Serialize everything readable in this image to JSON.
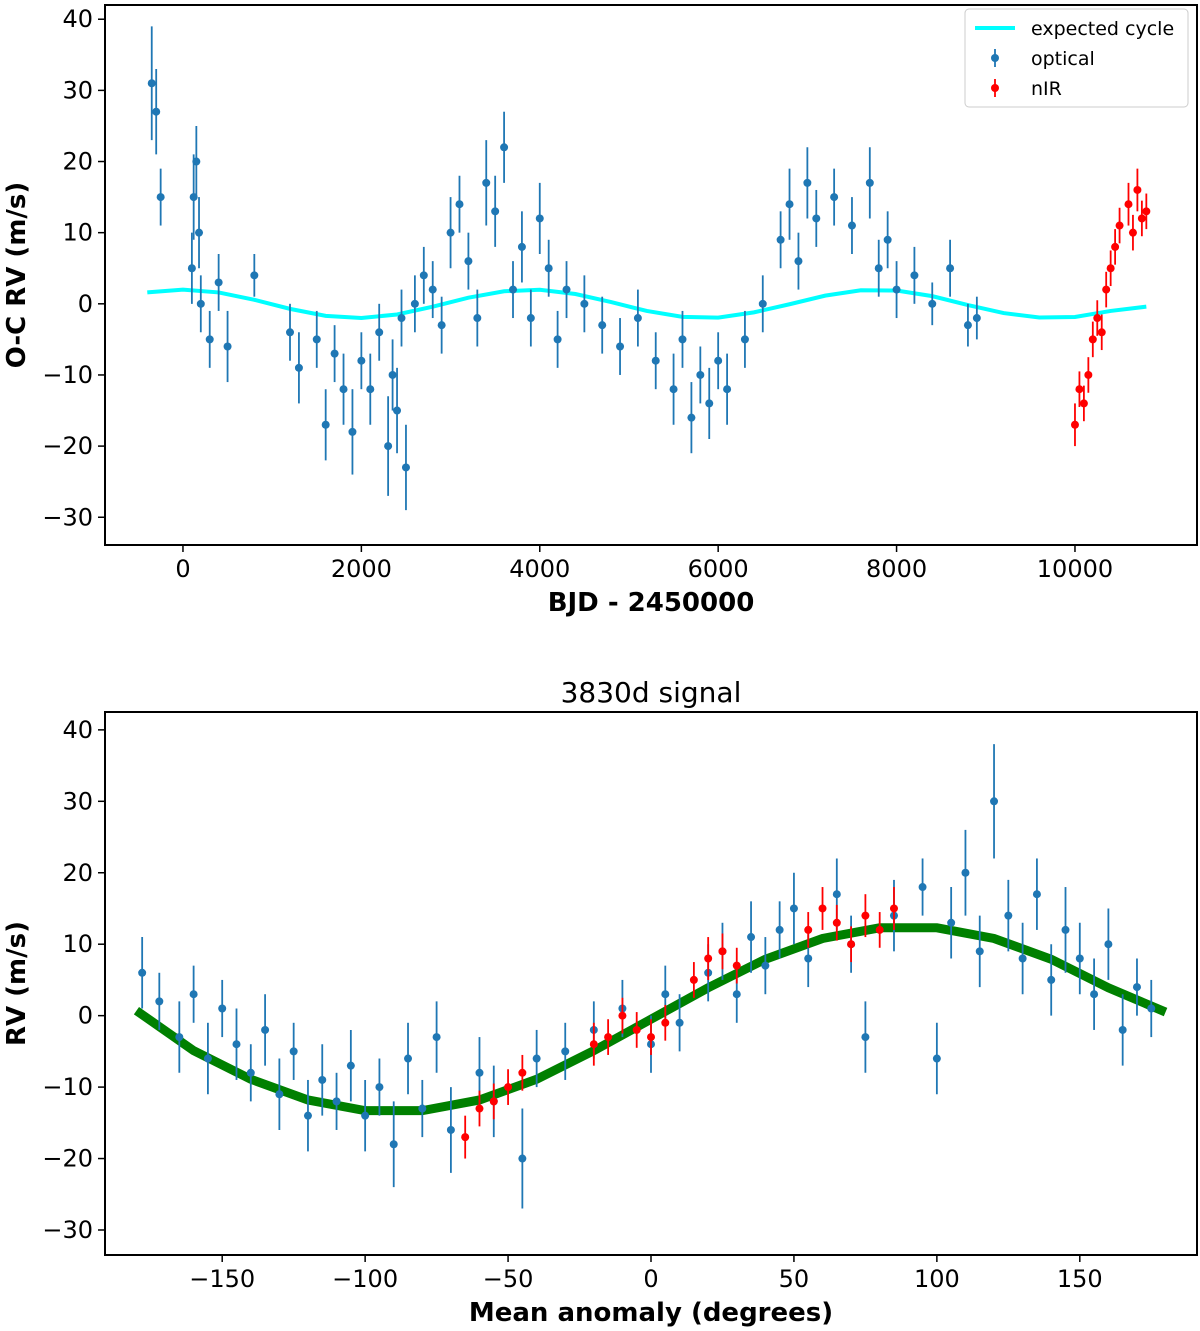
{
  "chart_data": [
    {
      "type": "scatter",
      "x_label": "BJD - 2450000",
      "y_label": "O-C RV (m/s)",
      "xlim": [
        -874,
        11368
      ],
      "ylim": [
        -33.9,
        42
      ],
      "xticks": [
        0,
        2000,
        4000,
        6000,
        8000,
        10000
      ],
      "yticks": [
        {
          "value": -30,
          "label": "−30"
        },
        {
          "value": -20,
          "label": "−20"
        },
        {
          "value": -10,
          "label": "−10"
        },
        0,
        10,
        20,
        30,
        40
      ],
      "legend": "upper right",
      "series": [
        {
          "name": "expected cycle",
          "type": "line",
          "color": "#00ffff",
          "x": [
            -400,
            0,
            400,
            800,
            1200,
            1600,
            2000,
            2400,
            2800,
            3200,
            3600,
            4000,
            4400,
            4800,
            5200,
            5600,
            6000,
            6400,
            6800,
            7200,
            7600,
            8000,
            8400,
            8800,
            9200,
            9600,
            10000,
            10400,
            10800
          ],
          "values": [
            1.6,
            2,
            1.6,
            0.56,
            -0.71,
            -1.69,
            -1.99,
            -1.5,
            -0.4,
            0.86,
            1.77,
            1.97,
            1.38,
            0.24,
            -1.0,
            -1.84,
            -1.94,
            -1.2,
            -0.06,
            1.15,
            1.9,
            1.87,
            1.08,
            -0.17,
            -1.3,
            -1.93,
            -1.85,
            -1.0,
            -0.4
          ]
        },
        {
          "name": "optical",
          "type": "errorbar",
          "color": "#1f77b4",
          "x": [
            -350,
            -300,
            -250,
            100,
            120,
            150,
            180,
            200,
            300,
            400,
            500,
            800,
            1200,
            1300,
            1500,
            1600,
            1700,
            1800,
            1900,
            2000,
            2100,
            2200,
            2300,
            2350,
            2400,
            2450,
            2500,
            2600,
            2700,
            2800,
            2900,
            3000,
            3100,
            3200,
            3300,
            3400,
            3500,
            3600,
            3700,
            3800,
            3900,
            4000,
            4100,
            4200,
            4300,
            4500,
            4700,
            4900,
            5100,
            5300,
            5500,
            5600,
            5700,
            5800,
            5900,
            6000,
            6100,
            6300,
            6500,
            6700,
            6800,
            6900,
            7000,
            7100,
            7300,
            7500,
            7700,
            7800,
            7900,
            8000,
            8200,
            8400,
            8600,
            8800,
            8900
          ],
          "values": [
            31,
            27,
            15,
            5,
            15,
            20,
            10,
            0,
            -5,
            3,
            -6,
            4,
            -4,
            -9,
            -5,
            -17,
            -7,
            -12,
            -18,
            -8,
            -12,
            -4,
            -20,
            -10,
            -15,
            -2,
            -23,
            0,
            4,
            2,
            -3,
            10,
            14,
            6,
            -2,
            17,
            13,
            22,
            2,
            8,
            -2,
            12,
            5,
            -5,
            2,
            0,
            -3,
            -6,
            -2,
            -8,
            -12,
            -5,
            -16,
            -10,
            -14,
            -8,
            -12,
            -5,
            0,
            9,
            14,
            6,
            17,
            12,
            15,
            11,
            17,
            5,
            9,
            2,
            4,
            0,
            5,
            -3,
            -2
          ],
          "errors": [
            8,
            6,
            4,
            5,
            6,
            5,
            5,
            4,
            4,
            4,
            5,
            3,
            4,
            5,
            4,
            5,
            4,
            5,
            6,
            4,
            5,
            4,
            7,
            5,
            6,
            4,
            6,
            4,
            4,
            4,
            4,
            5,
            4,
            4,
            4,
            6,
            5,
            5,
            4,
            5,
            4,
            5,
            4,
            4,
            4,
            4,
            4,
            4,
            4,
            4,
            5,
            4,
            5,
            4,
            5,
            4,
            5,
            4,
            4,
            4,
            5,
            4,
            5,
            4,
            4,
            4,
            5,
            4,
            4,
            4,
            4,
            3,
            4,
            3,
            3
          ]
        },
        {
          "name": "nIR",
          "type": "errorbar",
          "color": "#ff0000",
          "x": [
            10000,
            10050,
            10100,
            10150,
            10200,
            10250,
            10300,
            10350,
            10400,
            10450,
            10500,
            10600,
            10650,
            10700,
            10750,
            10800
          ],
          "values": [
            -17,
            -12,
            -14,
            -10,
            -5,
            -2,
            -4,
            2,
            5,
            8,
            11,
            14,
            10,
            16,
            12,
            13
          ],
          "errors": [
            3,
            2.5,
            2.5,
            2.5,
            2.5,
            2.5,
            2.5,
            2.5,
            2.5,
            2.5,
            2.5,
            3,
            2.5,
            3,
            2.5,
            2.5
          ]
        }
      ]
    },
    {
      "type": "scatter",
      "title": "3830d signal",
      "x_label": "Mean anomaly (degrees)",
      "y_label": "RV (m/s)",
      "xlim": [
        -191,
        191
      ],
      "ylim": [
        -33.5,
        42.5
      ],
      "xticks": [
        {
          "value": -150,
          "label": "−150"
        },
        {
          "value": -100,
          "label": "−100"
        },
        {
          "value": -50,
          "label": "−50"
        },
        0,
        50,
        100,
        150
      ],
      "yticks": [
        {
          "value": -30,
          "label": "−30"
        },
        {
          "value": -20,
          "label": "−20"
        },
        {
          "value": -10,
          "label": "−10"
        },
        0,
        10,
        20,
        30,
        40
      ],
      "series": [
        {
          "type": "line",
          "color": "#008000",
          "x": [
            -180,
            -160,
            -140,
            -120,
            -100,
            -80,
            -60,
            -40,
            -20,
            0,
            20,
            40,
            60,
            80,
            100,
            120,
            140,
            160,
            180
          ],
          "values": [
            0.7,
            -4.9,
            -8.9,
            -11.8,
            -13.3,
            -13.3,
            -11.8,
            -8.9,
            -4.9,
            -0.5,
            3.9,
            7.9,
            10.8,
            12.3,
            12.3,
            10.8,
            7.9,
            3.9,
            0.5
          ]
        },
        {
          "name": "optical",
          "type": "errorbar",
          "color": "#1f77b4",
          "x": [
            -178,
            -172,
            -165,
            -160,
            -155,
            -150,
            -145,
            -140,
            -135,
            -130,
            -125,
            -120,
            -115,
            -110,
            -105,
            -100,
            -95,
            -90,
            -85,
            -80,
            -75,
            -70,
            -60,
            -55,
            -45,
            -40,
            -30,
            -20,
            -10,
            0,
            5,
            10,
            20,
            25,
            30,
            35,
            40,
            45,
            50,
            55,
            65,
            70,
            75,
            85,
            95,
            100,
            105,
            110,
            115,
            120,
            125,
            130,
            135,
            140,
            145,
            150,
            155,
            160,
            165,
            170,
            175
          ],
          "values": [
            6,
            2,
            -3,
            3,
            -6,
            1,
            -4,
            -8,
            -2,
            -11,
            -5,
            -14,
            -9,
            -12,
            -7,
            -14,
            -10,
            -18,
            -6,
            -13,
            -3,
            -16,
            -8,
            -12,
            -20,
            -6,
            -5,
            -2,
            1,
            -4,
            3,
            -1,
            6,
            9,
            3,
            11,
            7,
            12,
            15,
            8,
            17,
            10,
            -3,
            14,
            18,
            -6,
            13,
            20,
            9,
            30,
            14,
            8,
            17,
            5,
            12,
            8,
            3,
            10,
            -2,
            4,
            1
          ],
          "errors": [
            5,
            4,
            5,
            4,
            5,
            4,
            5,
            4,
            5,
            5,
            4,
            5,
            5,
            4,
            5,
            5,
            4,
            6,
            5,
            4,
            5,
            6,
            5,
            5,
            7,
            4,
            4,
            4,
            4,
            4,
            4,
            4,
            4,
            4,
            4,
            5,
            4,
            4,
            5,
            4,
            5,
            4,
            5,
            5,
            4,
            5,
            5,
            6,
            5,
            8,
            5,
            5,
            5,
            5,
            6,
            5,
            5,
            5,
            5,
            4,
            4
          ]
        },
        {
          "name": "nIR",
          "type": "errorbar",
          "color": "#ff0000",
          "x": [
            -65,
            -60,
            -55,
            -50,
            -45,
            -20,
            -15,
            -10,
            -5,
            0,
            5,
            15,
            20,
            25,
            30,
            55,
            60,
            65,
            70,
            75,
            80,
            85
          ],
          "values": [
            -17,
            -13,
            -12,
            -10,
            -8,
            -4,
            -3,
            0,
            -2,
            -3,
            -1,
            5,
            8,
            9,
            7,
            12,
            15,
            13,
            10,
            14,
            12,
            15
          ],
          "errors": [
            3,
            2.5,
            2.5,
            2.5,
            2.5,
            3,
            2.5,
            2.5,
            2.5,
            2.5,
            2.5,
            2.5,
            3,
            2.5,
            2.5,
            2.5,
            3,
            2.5,
            2.5,
            3,
            2.5,
            3
          ]
        }
      ]
    }
  ]
}
